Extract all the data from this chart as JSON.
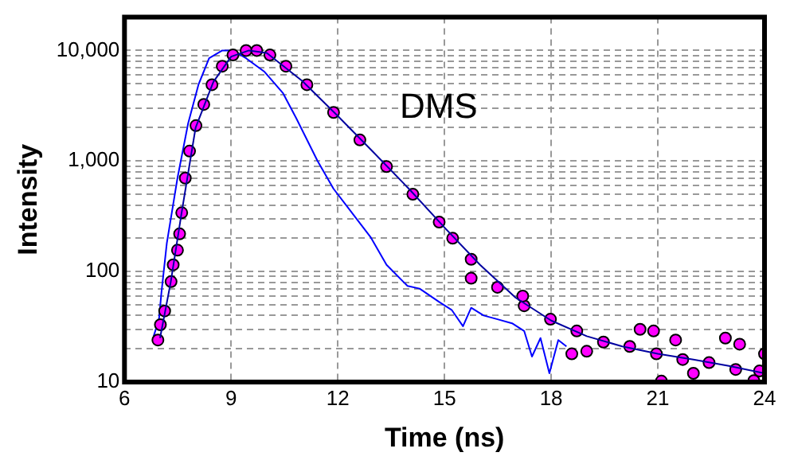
{
  "chart_data": {
    "type": "line",
    "xlabel": "Time (ns)",
    "ylabel": "Intensity",
    "annotations": [
      "DMS"
    ],
    "xlim": [
      6,
      24
    ],
    "xticks": [
      6,
      9,
      12,
      15,
      18,
      21,
      24
    ],
    "ylim": [
      10,
      20000
    ],
    "log": true,
    "grid": true,
    "legend": false,
    "line_style": "solid",
    "yticks": [
      10,
      {
        "value": 20,
        "label": null
      },
      {
        "value": 30,
        "label": null
      },
      {
        "value": 40,
        "label": null
      },
      {
        "value": 50,
        "label": null
      },
      {
        "value": 60,
        "label": null
      },
      {
        "value": 70,
        "label": null
      },
      {
        "value": 80,
        "label": null
      },
      {
        "value": 90,
        "label": null
      },
      100,
      {
        "value": 200,
        "label": null
      },
      {
        "value": 300,
        "label": null
      },
      {
        "value": 400,
        "label": null
      },
      {
        "value": 500,
        "label": null
      },
      {
        "value": 600,
        "label": null
      },
      {
        "value": 700,
        "label": null
      },
      {
        "value": 800,
        "label": null
      },
      {
        "value": 900,
        "label": null
      },
      {
        "value": 1000,
        "label": "1,000"
      },
      {
        "value": 2000,
        "label": null
      },
      {
        "value": 3000,
        "label": null
      },
      {
        "value": 4000,
        "label": null
      },
      {
        "value": 5000,
        "label": null
      },
      {
        "value": 6000,
        "label": null
      },
      {
        "value": 7000,
        "label": null
      },
      {
        "value": 8000,
        "label": null
      },
      {
        "value": 9000,
        "label": null
      },
      {
        "value": 10000,
        "label": "10,000"
      }
    ],
    "series": [
      {
        "color": "#0000ff",
        "x": [
          6.82,
          6.97,
          7.04,
          7.19,
          7.49,
          7.79,
          8.08,
          8.38,
          8.75,
          9.05,
          9.42,
          9.94,
          10.46,
          10.83,
          11.43,
          11.88,
          12.47,
          12.92,
          13.37,
          13.96,
          14.3,
          14.85,
          15.2,
          15.52,
          15.75,
          16.1,
          16.49,
          16.9,
          17.24,
          17.46,
          17.7,
          17.95,
          18.2,
          18.43
        ],
        "values": [
          26,
          37,
          65,
          180,
          700,
          2190,
          4900,
          8500,
          10000,
          10000,
          8500,
          6400,
          4100,
          2440,
          1000,
          560,
          317,
          205,
          115,
          74,
          70,
          53,
          45,
          32,
          47,
          40,
          37,
          34,
          29,
          17,
          25,
          12,
          24,
          21
        ]
      },
      {
        "type": "scatter",
        "marker": "circle",
        "color": "#ff00ff",
        "x": [
          6.94,
          7.01,
          7.13,
          7.31,
          7.37,
          7.49,
          7.55,
          7.61,
          7.71,
          7.83,
          8.01,
          8.23,
          8.46,
          8.75,
          9.05,
          9.42,
          9.72,
          10.09,
          10.54,
          11.13,
          11.88,
          12.62,
          13.37,
          14.11,
          14.85,
          15.23,
          15.75,
          16.49,
          17.24,
          17.98,
          18.72,
          19.47,
          20.21,
          20.96,
          21.7,
          22.44,
          23.19,
          23.86,
          15.75,
          17.2,
          18.58,
          19.0,
          20.5,
          20.88,
          21.1,
          21.5,
          22.0,
          22.9,
          23.3,
          23.7,
          24.0
        ],
        "values": [
          24,
          33,
          44,
          81,
          115,
          156,
          219,
          340,
          700,
          1230,
          2090,
          3250,
          4900,
          7200,
          9100,
          10000,
          10000,
          9100,
          7200,
          4900,
          2750,
          1550,
          890,
          500,
          280,
          200,
          129,
          72,
          49,
          37,
          29,
          23,
          21,
          18,
          16,
          15,
          13,
          12.6,
          87,
          60,
          18,
          19,
          30,
          29,
          10.2,
          24,
          12,
          25,
          22,
          10.3,
          18
        ]
      },
      {
        "color": "#0000a0",
        "x": [
          7.0,
          7.3,
          7.6,
          8.0,
          8.5,
          9.0,
          9.5,
          10.0,
          11.0,
          12.0,
          13.0,
          14.0,
          15.0,
          16.0,
          17.0,
          18.0,
          19.0,
          20.0,
          21.0,
          22.0,
          23.0,
          24.0
        ],
        "values": [
          25,
          80,
          330,
          2000,
          5200,
          8800,
          10000,
          9500,
          5300,
          2550,
          1200,
          560,
          250,
          115,
          58,
          36,
          26,
          21,
          18,
          16,
          14,
          12
        ]
      }
    ]
  }
}
